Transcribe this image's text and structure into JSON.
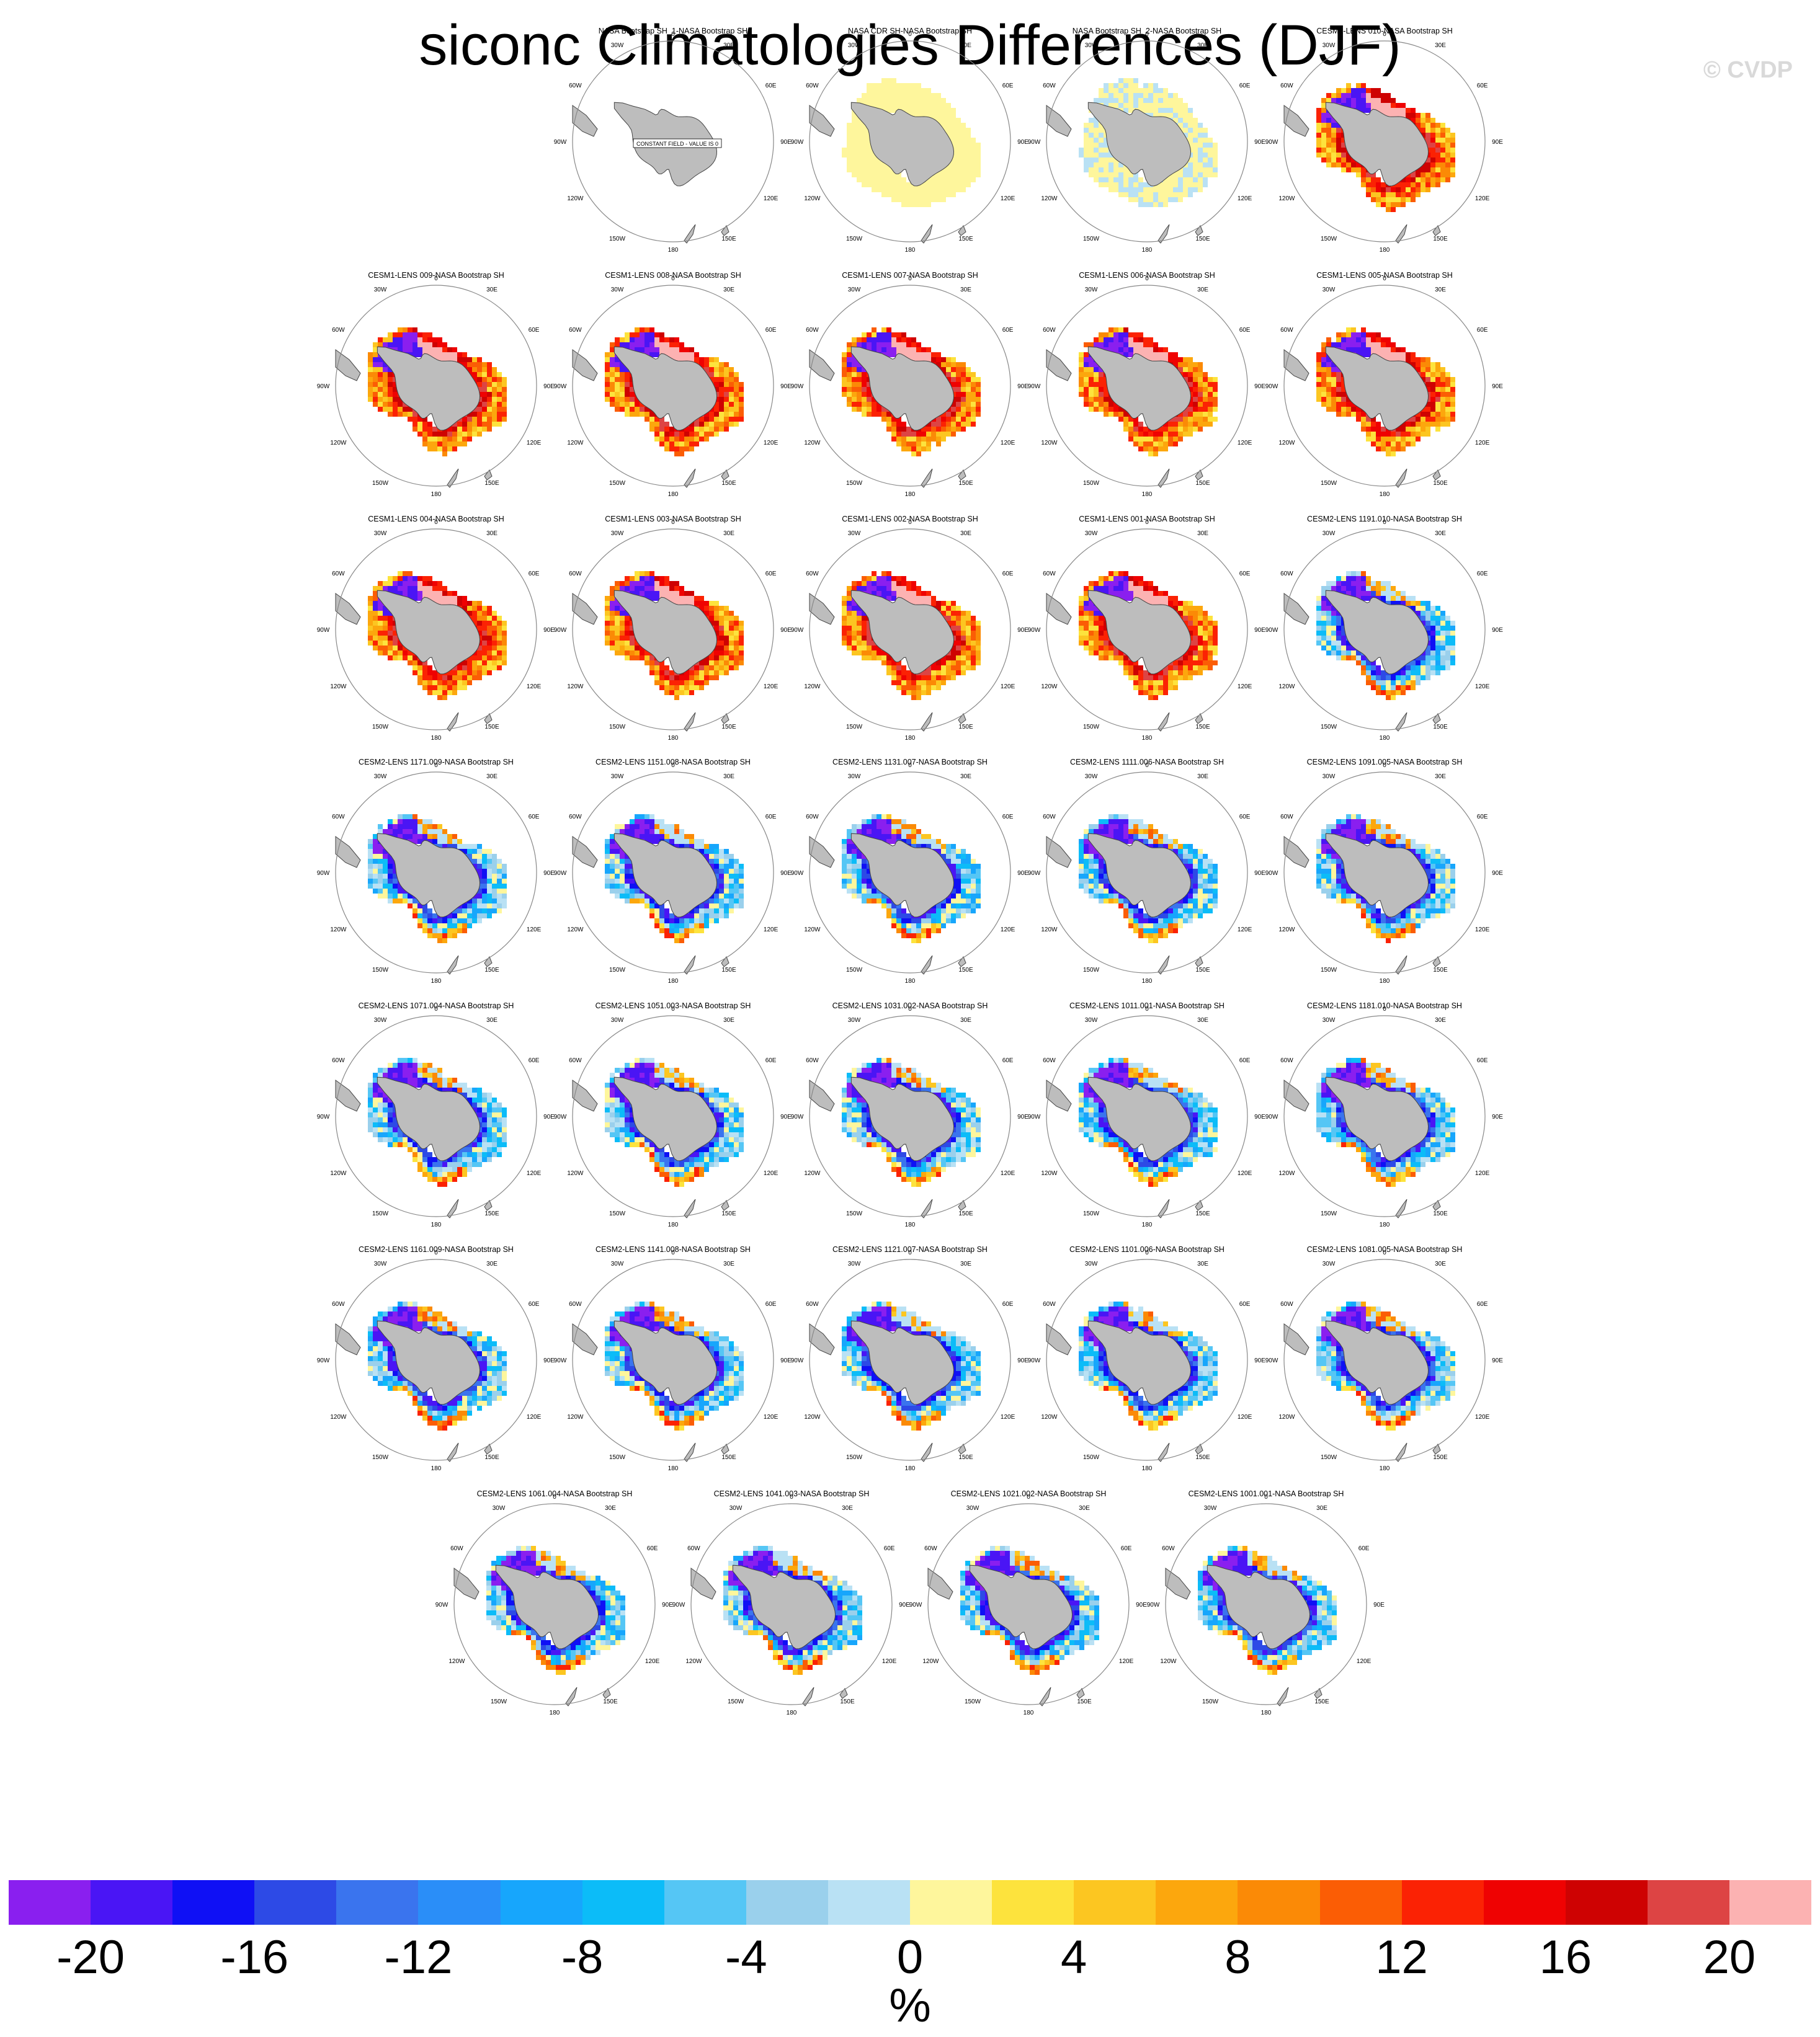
{
  "title": "siconc Climatologies Differences (DJF)",
  "watermark": "© CVDP",
  "colorbar": {
    "colors": [
      "#8a1fef",
      "#4a15f5",
      "#0f10f5",
      "#2d4ae6",
      "#3a74ee",
      "#2a8ef8",
      "#17a6fc",
      "#0cbcf8",
      "#55c6f5",
      "#9ad0ec",
      "#b9e1f4",
      "#fef69c",
      "#fde33d",
      "#fcc621",
      "#fca70d",
      "#fb8a06",
      "#fb5d05",
      "#fb2204",
      "#ef0202",
      "#ce0202",
      "#dd4444",
      "#fcb2b2"
    ],
    "tick_labels": [
      "-20",
      "-16",
      "-12",
      "-8",
      "-4",
      "0",
      "4",
      "8",
      "12",
      "16",
      "20"
    ],
    "units": "%"
  },
  "map_labels": {
    "lon_top": "0",
    "lon_bottom": "180",
    "lon_30w": "30W",
    "lon_30e": "30E",
    "lon_60w": "60W",
    "lon_60e": "60E",
    "lon_90w": "90W",
    "lon_90e": "90E",
    "lon_120w": "120W",
    "lon_120e": "120E",
    "lon_150w": "150W",
    "lon_150e": "150E",
    "constant_field": "CONSTANT FIELD - VALUE IS 0"
  },
  "panels": [
    {
      "title": "NASA Bootstrap SH_1-NASA Bootstrap SH",
      "style": "constant"
    },
    {
      "title": "NASA CDR SH-NASA Bootstrap SH",
      "style": "cdr"
    },
    {
      "title": "NASA Bootstrap SH_2-NASA Bootstrap SH",
      "style": "bs2"
    },
    {
      "title": "CESM1-LENS 010-NASA Bootstrap SH",
      "style": "cesm1"
    },
    {
      "title": "CESM1-LENS 009-NASA Bootstrap SH",
      "style": "cesm1"
    },
    {
      "title": "CESM1-LENS 008-NASA Bootstrap SH",
      "style": "cesm1"
    },
    {
      "title": "CESM1-LENS 007-NASA Bootstrap SH",
      "style": "cesm1"
    },
    {
      "title": "CESM1-LENS 006-NASA Bootstrap SH",
      "style": "cesm1"
    },
    {
      "title": "CESM1-LENS 005-NASA Bootstrap SH",
      "style": "cesm1"
    },
    {
      "title": "CESM1-LENS 004-NASA Bootstrap SH",
      "style": "cesm1"
    },
    {
      "title": "CESM1-LENS 003-NASA Bootstrap SH",
      "style": "cesm1"
    },
    {
      "title": "CESM1-LENS 002-NASA Bootstrap SH",
      "style": "cesm1"
    },
    {
      "title": "CESM1-LENS 001-NASA Bootstrap SH",
      "style": "cesm1"
    },
    {
      "title": "CESM2-LENS 1191.010-NASA Bootstrap SH",
      "style": "cesm2"
    },
    {
      "title": "CESM2-LENS 1171.009-NASA Bootstrap SH",
      "style": "cesm2"
    },
    {
      "title": "CESM2-LENS 1151.008-NASA Bootstrap SH",
      "style": "cesm2"
    },
    {
      "title": "CESM2-LENS 1131.007-NASA Bootstrap SH",
      "style": "cesm2"
    },
    {
      "title": "CESM2-LENS 1111.006-NASA Bootstrap SH",
      "style": "cesm2"
    },
    {
      "title": "CESM2-LENS 1091.005-NASA Bootstrap SH",
      "style": "cesm2"
    },
    {
      "title": "CESM2-LENS 1071.004-NASA Bootstrap SH",
      "style": "cesm2"
    },
    {
      "title": "CESM2-LENS 1051.003-NASA Bootstrap SH",
      "style": "cesm2"
    },
    {
      "title": "CESM2-LENS 1031.002-NASA Bootstrap SH",
      "style": "cesm2"
    },
    {
      "title": "CESM2-LENS 1011.001-NASA Bootstrap SH",
      "style": "cesm2"
    },
    {
      "title": "CESM2-LENS 1181.010-NASA Bootstrap SH",
      "style": "cesm2"
    },
    {
      "title": "CESM2-LENS 1161.009-NASA Bootstrap SH",
      "style": "cesm2"
    },
    {
      "title": "CESM2-LENS 1141.008-NASA Bootstrap SH",
      "style": "cesm2"
    },
    {
      "title": "CESM2-LENS 1121.007-NASA Bootstrap SH",
      "style": "cesm2"
    },
    {
      "title": "CESM2-LENS 1101.006-NASA Bootstrap SH",
      "style": "cesm2"
    },
    {
      "title": "CESM2-LENS 1081.005-NASA Bootstrap SH",
      "style": "cesm2"
    },
    {
      "title": "CESM2-LENS 1061.004-NASA Bootstrap SH",
      "style": "cesm2"
    },
    {
      "title": "CESM2-LENS 1041.003-NASA Bootstrap SH",
      "style": "cesm2"
    },
    {
      "title": "CESM2-LENS 1021.002-NASA Bootstrap SH",
      "style": "cesm2"
    },
    {
      "title": "CESM2-LENS 1001.001-NASA Bootstrap SH",
      "style": "cesm2"
    }
  ]
}
